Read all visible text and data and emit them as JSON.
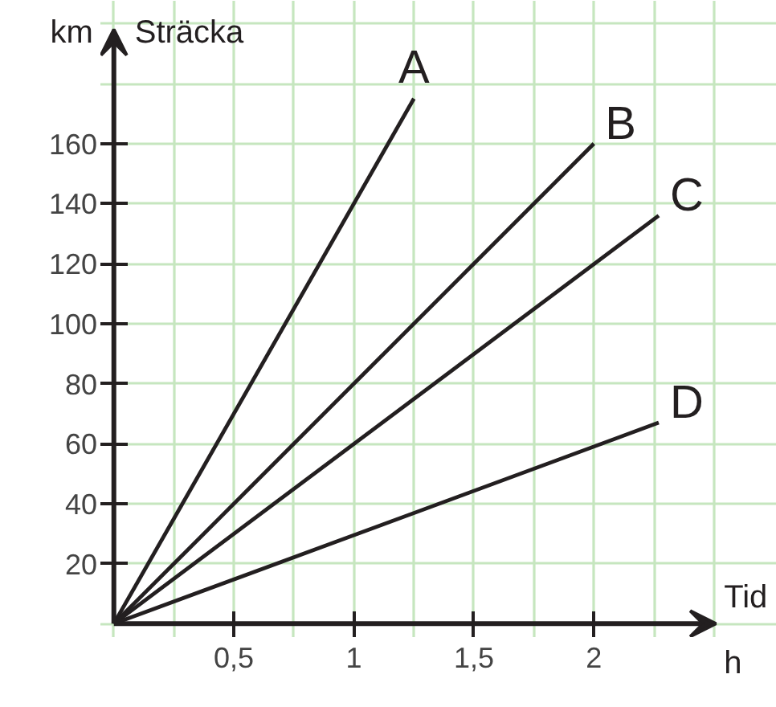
{
  "chart_data": {
    "type": "line",
    "xlabel": "Tid",
    "ylabel": "Sträcka",
    "annotations": [
      "km",
      "h"
    ],
    "xlim": [
      -0.056,
      2.762
    ],
    "ylim": [
      -4.47,
      207.6
    ],
    "xticks": [
      {
        "value": 0.5,
        "label": "0,5"
      },
      1,
      {
        "value": 1.5,
        "label": "1,5"
      },
      2
    ],
    "yticks": [
      20,
      40,
      60,
      80,
      100,
      120,
      140,
      160
    ],
    "grid": true,
    "line_style": "solid",
    "series": [
      {
        "name": "A",
        "color": "#231f20",
        "x": [
          0,
          1.25
        ],
        "values": [
          0,
          175
        ]
      },
      {
        "name": "B",
        "color": "#231f20",
        "x": [
          0,
          2
        ],
        "values": [
          0,
          160
        ]
      },
      {
        "name": "C",
        "color": "#231f20",
        "x": [
          0,
          2.27
        ],
        "values": [
          0,
          136
        ]
      },
      {
        "name": "D",
        "color": "#231f20",
        "x": [
          0,
          2.27
        ],
        "values": [
          0,
          67
        ]
      }
    ]
  }
}
